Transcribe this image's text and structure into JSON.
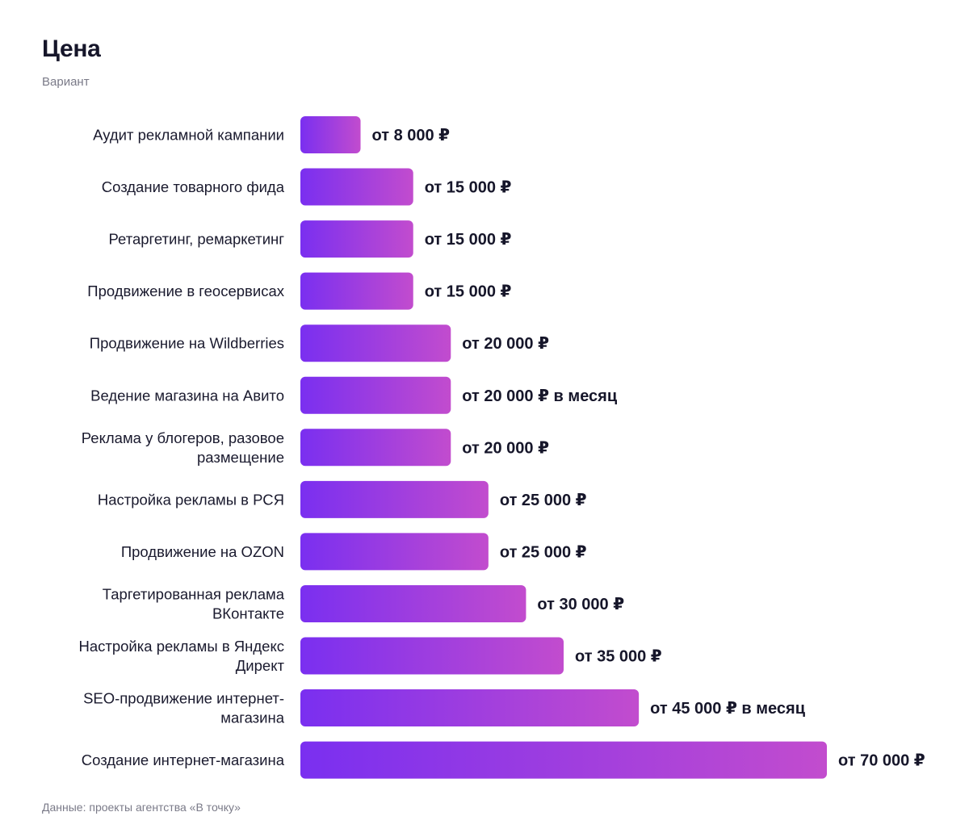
{
  "header": {
    "title": "Цена",
    "subtitle": "Вариант"
  },
  "footer": {
    "source": "Данные: проекты агентства «В точку»"
  },
  "colors": {
    "bar_gradient_start": "#7a2ff0",
    "bar_gradient_end": "#c24cce",
    "label_text": "#1a1a2e",
    "value_text": "#16162a"
  },
  "chart_data": {
    "type": "bar",
    "orientation": "horizontal",
    "title": "Цена",
    "subtitle": "Вариант",
    "categories": [
      [
        "Аудит рекламной кампании"
      ],
      [
        "Создание товарного фида"
      ],
      [
        "Ретаргетинг, ремаркетинг"
      ],
      [
        "Продвижение в геосервисах"
      ],
      [
        "Продвижение на Wildberries"
      ],
      [
        "Ведение магазина на Авито"
      ],
      [
        "Реклама у блогеров, разовое",
        "размещение"
      ],
      [
        "Настройка рекламы в РСЯ"
      ],
      [
        "Продвижение на OZON"
      ],
      [
        "Таргетированная реклама",
        "ВКонтакте"
      ],
      [
        "Настройка рекламы в Яндекс",
        "Директ"
      ],
      [
        "SEO-продвижение интернет-",
        "магазина"
      ],
      [
        "Создание интернет-магазина"
      ]
    ],
    "values": [
      8000,
      15000,
      15000,
      15000,
      20000,
      20000,
      20000,
      25000,
      25000,
      30000,
      35000,
      45000,
      70000
    ],
    "value_labels": [
      "от 8 000 ₽",
      "от 15 000 ₽",
      "от 15 000 ₽",
      "от 15 000 ₽",
      "от 20 000 ₽",
      "от 20 000 ₽ в месяц",
      "от 20 000 ₽",
      "от 25 000 ₽",
      "от 25 000 ₽",
      "от 30 000 ₽",
      "от 35 000 ₽",
      "от 45 000 ₽ в месяц",
      "от 70 000 ₽"
    ],
    "xlabel": "",
    "ylabel": "",
    "xlim": [
      0,
      70000
    ],
    "grid": false,
    "legend": "none"
  }
}
